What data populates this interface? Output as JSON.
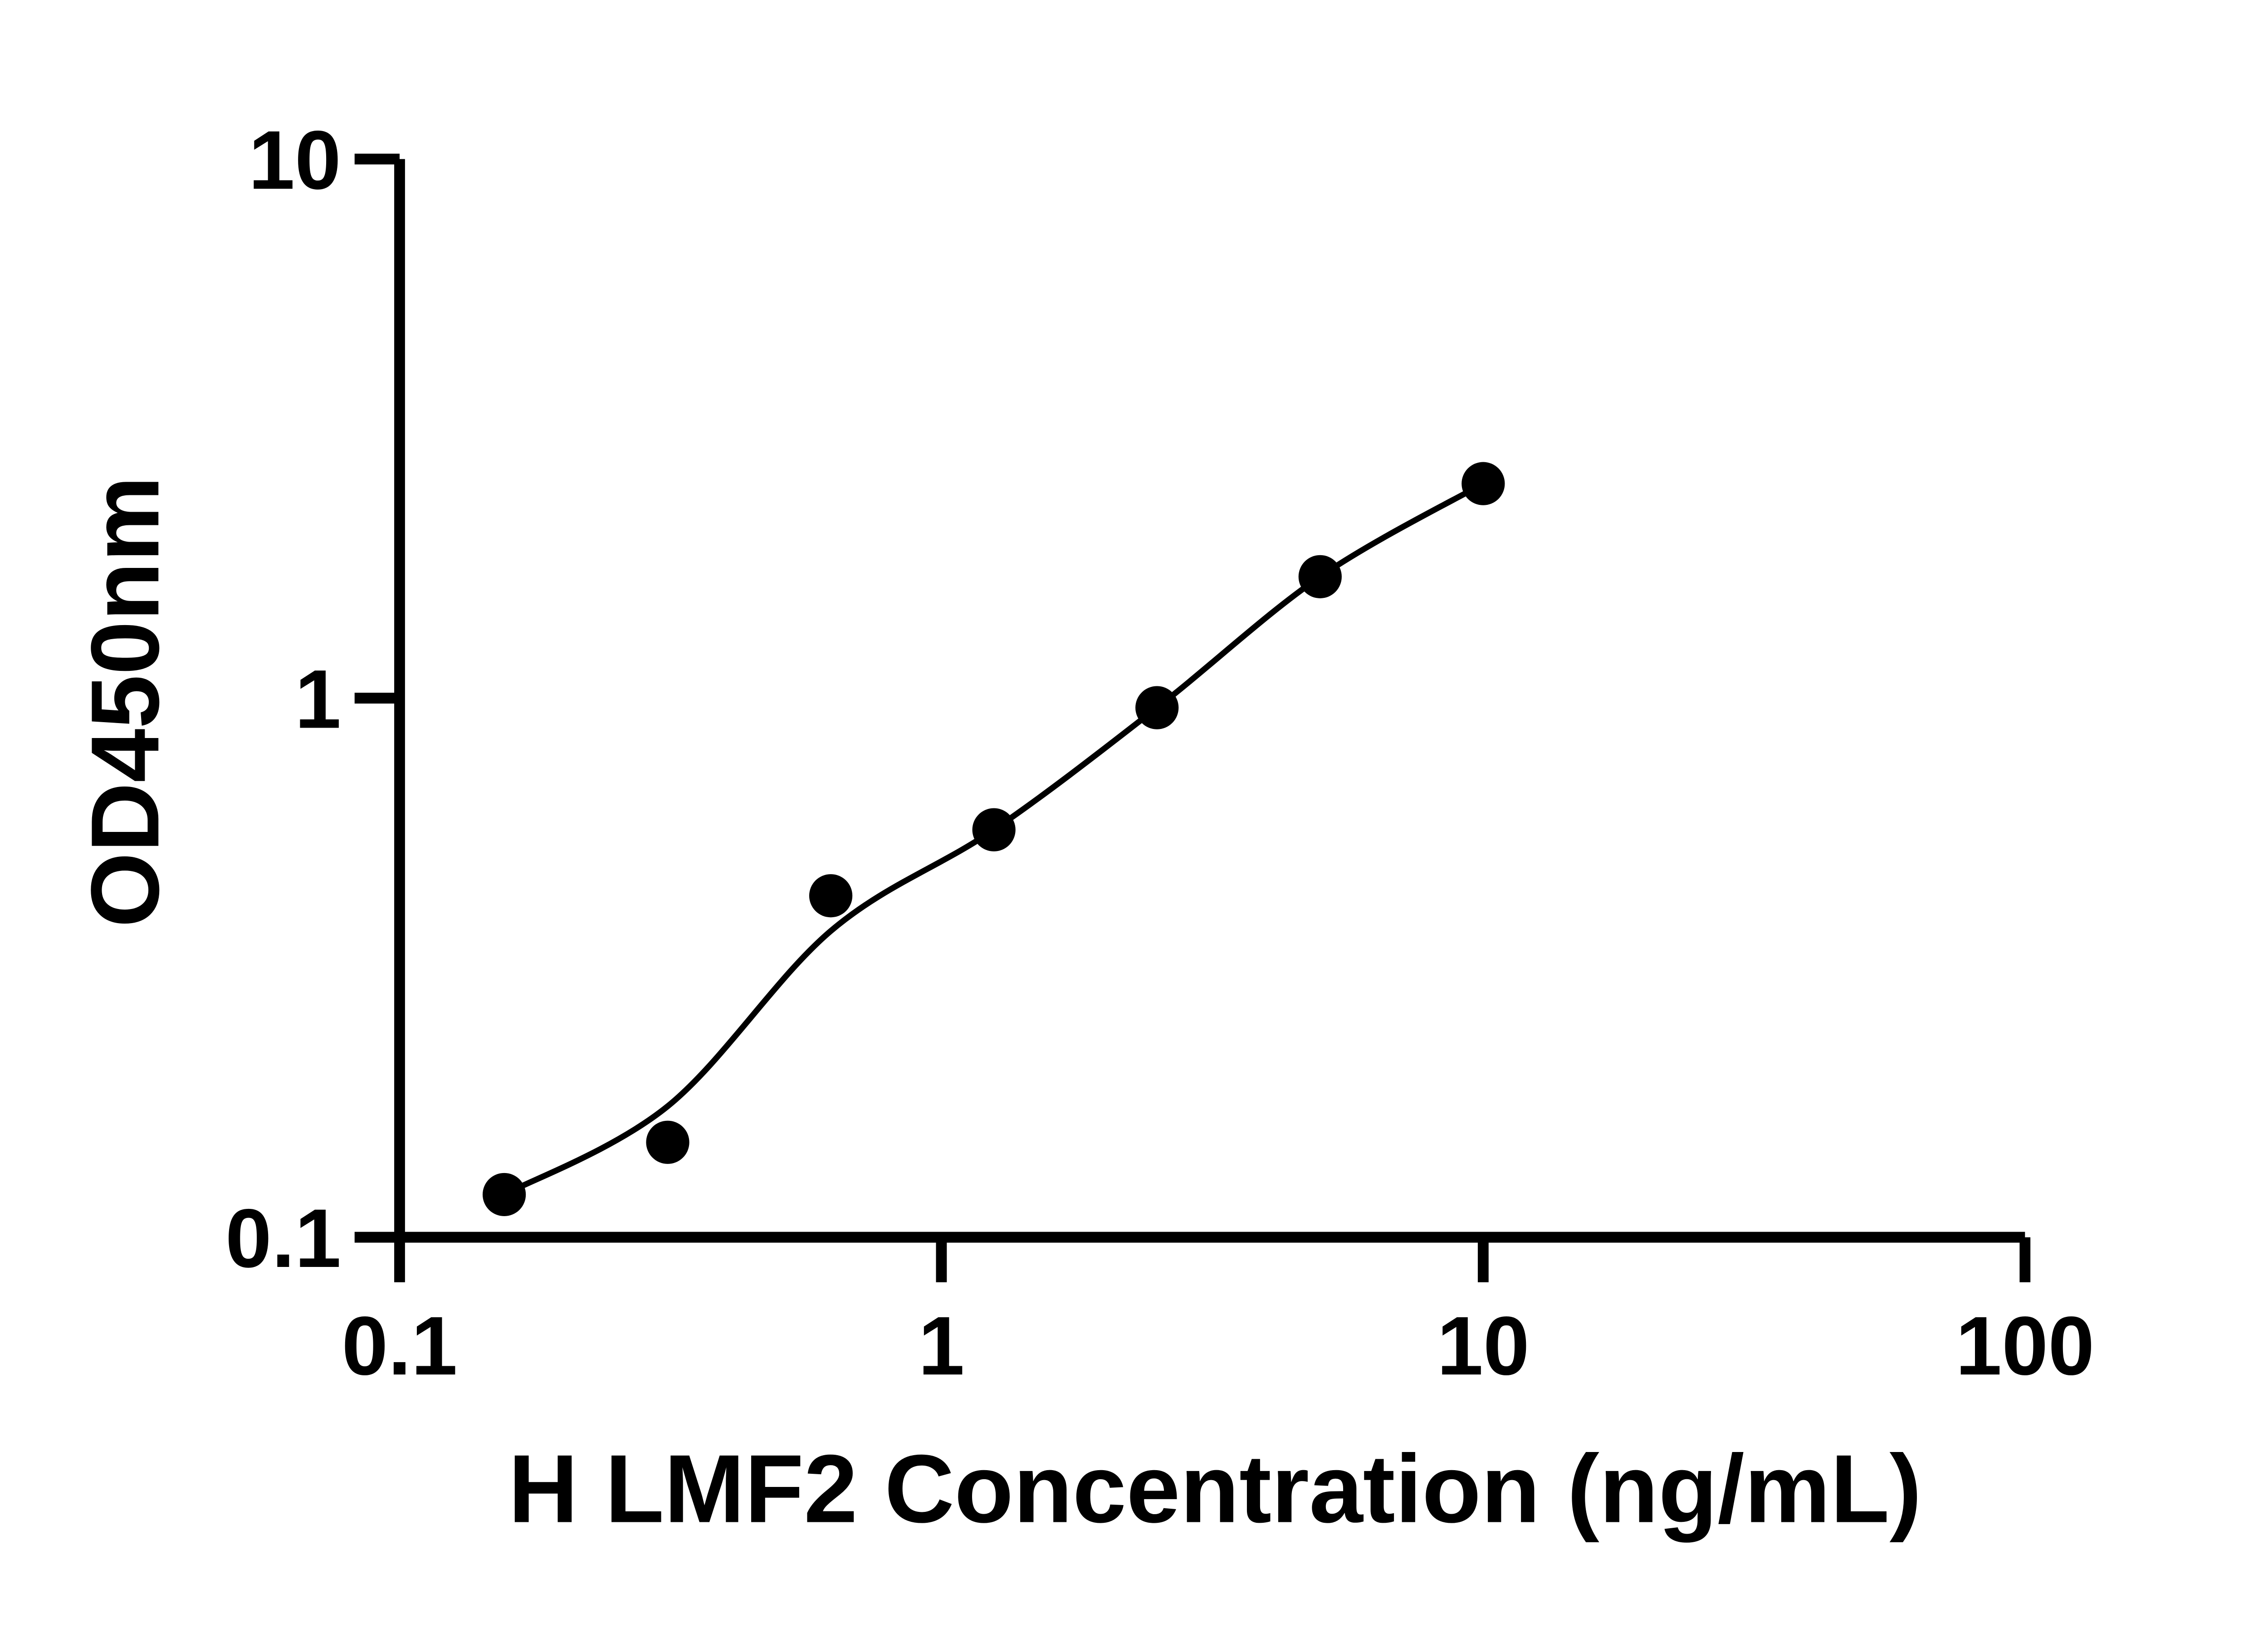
{
  "figure": {
    "background_color": "#ffffff",
    "foreground_color": "#000000"
  },
  "chart_data": {
    "type": "scatter",
    "title": "",
    "xlabel": "H LMF2 Concentration (ng/mL)",
    "ylabel": "OD450nm",
    "x_scale": "log10",
    "y_scale": "log10",
    "xlim": [
      0.1,
      100
    ],
    "ylim": [
      0.1,
      10
    ],
    "x_tick_labels": [
      "0.1",
      "1",
      "10",
      "100"
    ],
    "y_tick_labels": [
      "10",
      "1",
      "0.1"
    ],
    "grid": false,
    "legend_position": "none",
    "marker": {
      "shape": "filled-circle",
      "color": "#000000"
    },
    "line_color": "#000000",
    "series": [
      {
        "points": [
          {
            "concentration_ng_ml": 0.156,
            "od450": 0.12
          },
          {
            "concentration_ng_ml": 0.3125,
            "od450": 0.15
          },
          {
            "concentration_ng_ml": 0.625,
            "od450": 0.43
          },
          {
            "concentration_ng_ml": 1.25,
            "od450": 0.57
          },
          {
            "concentration_ng_ml": 2.5,
            "od450": 0.96
          },
          {
            "concentration_ng_ml": 5,
            "od450": 1.68
          },
          {
            "concentration_ng_ml": 10,
            "od450": 2.5
          }
        ]
      }
    ],
    "fit_curve_points": [
      {
        "concentration_ng_ml": 0.156,
        "od450": 0.12
      },
      {
        "concentration_ng_ml": 0.3125,
        "od450": 0.175
      },
      {
        "concentration_ng_ml": 0.625,
        "od450": 0.37
      },
      {
        "concentration_ng_ml": 1.25,
        "od450": 0.57
      },
      {
        "concentration_ng_ml": 2.5,
        "od450": 0.96
      },
      {
        "concentration_ng_ml": 5,
        "od450": 1.68
      },
      {
        "concentration_ng_ml": 10,
        "od450": 2.5
      }
    ]
  }
}
